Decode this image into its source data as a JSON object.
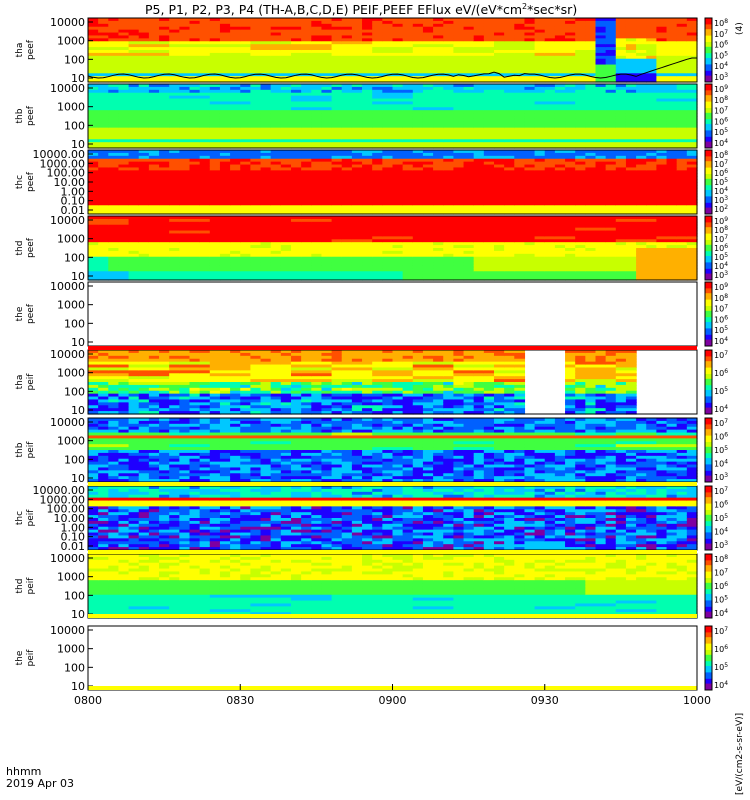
{
  "chart_data": {
    "type": "heatmap",
    "title": "P5, P1, P2, P3, P4 (TH-A,B,C,D,E) PEIF,PEEF EFlux eV/(eV*cm",
    "title_sup": "2",
    "title_tail": "*sec*sr)",
    "colorbar_label_text": "[eV/(cm2-s-sr-eV)]",
    "colorbar_label_tail": "(4)",
    "x_axis": {
      "tick_labels": [
        "0800",
        "0830",
        "0900",
        "0930",
        "1000"
      ],
      "label": "hhmm",
      "date": "2019 Apr 03"
    },
    "colormap": [
      "#7f00a0",
      "#1e00ff",
      "#0060ff",
      "#00c8ff",
      "#00ffb0",
      "#40ff40",
      "#c8ff00",
      "#ffff00",
      "#ffb000",
      "#ff5000",
      "#ff0000"
    ],
    "panels": [
      {
        "probe": "tha",
        "species": "peef",
        "yticks": [
          "10",
          "100",
          "1000",
          "10000"
        ],
        "cbticks": [
          "10",
          "10",
          "10",
          "10",
          "10",
          "10"
        ],
        "cbexp": [
          "8",
          "7",
          "6",
          "5",
          "4",
          "3"
        ],
        "profile": "electron_a",
        "has_curve": true
      },
      {
        "probe": "thb",
        "species": "peef",
        "yticks": [
          "10",
          "100",
          "1000",
          "10000"
        ],
        "cbticks": [
          "10",
          "10",
          "10",
          "10",
          "10",
          "10"
        ],
        "cbexp": [
          "9",
          "8",
          "7",
          "6",
          "5",
          "4"
        ],
        "profile": "electron"
      },
      {
        "probe": "thc",
        "species": "peef",
        "yticks": [
          "0.01",
          "0.10",
          "1.00",
          "10.00",
          "100.00",
          "1000.00",
          "10000.00"
        ],
        "cbticks": [
          "10",
          "10",
          "10",
          "10",
          "10",
          "10",
          "10"
        ],
        "cbexp": [
          "8",
          "7",
          "6",
          "5",
          "4",
          "3",
          "2"
        ],
        "profile": "electron_c"
      },
      {
        "probe": "thd",
        "species": "peef",
        "yticks": [
          "10",
          "100",
          "1000",
          "10000"
        ],
        "cbticks": [
          "10",
          "10",
          "10",
          "10",
          "10",
          "10",
          "10"
        ],
        "cbexp": [
          "9",
          "8",
          "7",
          "6",
          "5",
          "4",
          "3"
        ],
        "profile": "electron_d"
      },
      {
        "probe": "the",
        "species": "peef",
        "yticks": [
          "10",
          "100",
          "1000",
          "10000"
        ],
        "cbticks": [
          "10",
          "10",
          "10",
          "10",
          "10",
          "10"
        ],
        "cbexp": [
          "9",
          "8",
          "7",
          "6",
          "5",
          "4"
        ],
        "profile": "empty"
      },
      {
        "probe": "tha",
        "species": "peif",
        "yticks": [
          "10",
          "100",
          "1000",
          "10000"
        ],
        "cbticks": [
          "10",
          "10",
          "10",
          "10"
        ],
        "cbexp": [
          "7",
          "6",
          "5",
          "4"
        ],
        "profile": "ion_a"
      },
      {
        "probe": "thb",
        "species": "peif",
        "yticks": [
          "10",
          "100",
          "1000",
          "10000"
        ],
        "cbticks": [
          "10",
          "10",
          "10",
          "10",
          "10"
        ],
        "cbexp": [
          "7",
          "6",
          "5",
          "4",
          "3"
        ],
        "profile": "ion_b"
      },
      {
        "probe": "thc",
        "species": "peif",
        "yticks": [
          "0.01",
          "0.10",
          "1.00",
          "10.00",
          "100.00",
          "1000.00",
          "10000.00"
        ],
        "cbticks": [
          "10",
          "10",
          "10",
          "10",
          "10"
        ],
        "cbexp": [
          "7",
          "6",
          "5",
          "4",
          "3"
        ],
        "profile": "ion_c"
      },
      {
        "probe": "thd",
        "species": "peif",
        "yticks": [
          "10",
          "100",
          "1000",
          "10000"
        ],
        "cbticks": [
          "10",
          "10",
          "10",
          "10",
          "10"
        ],
        "cbexp": [
          "8",
          "7",
          "6",
          "5",
          "4"
        ],
        "profile": "ion_d"
      },
      {
        "probe": "the",
        "species": "peif",
        "yticks": [
          "10",
          "100",
          "1000",
          "10000"
        ],
        "cbticks": [
          "10",
          "10",
          "10",
          "10"
        ],
        "cbexp": [
          "7",
          "6",
          "5",
          "4"
        ],
        "profile": "empty"
      }
    ]
  }
}
